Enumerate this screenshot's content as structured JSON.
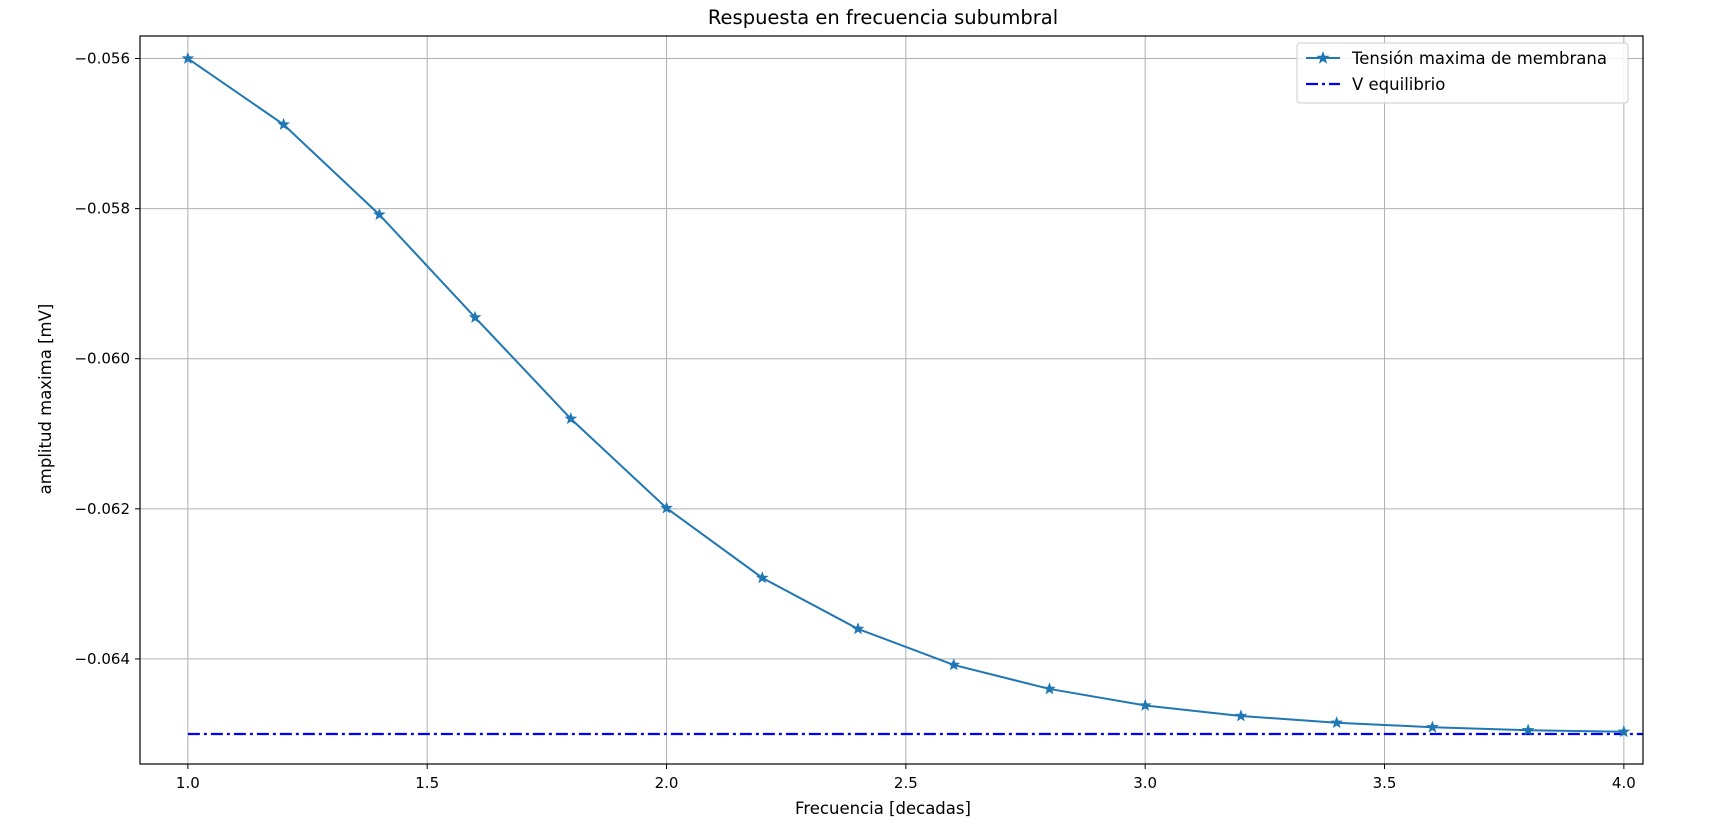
{
  "chart_data": {
    "type": "line",
    "title": "Respuesta en frecuencia subumbral",
    "xlabel": "Frecuencia [decadas]",
    "ylabel": "amplitud maxima [mV]",
    "xlim": [
      0.9,
      4.04
    ],
    "ylim": [
      -0.0654,
      -0.0557
    ],
    "xticks": [
      1.0,
      1.5,
      2.0,
      2.5,
      3.0,
      3.5,
      4.0
    ],
    "xtick_labels": [
      "1.0",
      "1.5",
      "2.0",
      "2.5",
      "3.0",
      "3.5",
      "4.0"
    ],
    "yticks": [
      -0.056,
      -0.058,
      -0.06,
      -0.062,
      -0.064
    ],
    "ytick_labels": [
      "−0.056",
      "−0.058",
      "−0.060",
      "−0.062",
      "−0.064"
    ],
    "grid": true,
    "legend_position": "top-right",
    "series": [
      {
        "name": "Tensión maxima de membrana",
        "color": "#1f77b4",
        "marker": "star",
        "linestyle": "solid",
        "x": [
          1.0,
          1.2,
          1.4,
          1.6,
          1.8,
          2.0,
          2.2,
          2.4,
          2.6,
          2.8,
          3.0,
          3.2,
          3.4,
          3.6,
          3.8,
          4.0
        ],
        "y": [
          -0.056,
          -0.05688,
          -0.05808,
          -0.05945,
          -0.0608,
          -0.06199,
          -0.06292,
          -0.0636,
          -0.06408,
          -0.0644,
          -0.06462,
          -0.06476,
          -0.06485,
          -0.06491,
          -0.06495,
          -0.06497
        ]
      },
      {
        "name": "V equilibrio",
        "color": "#0000ff",
        "marker": "none",
        "linestyle": "dashdot",
        "x": [
          1.0,
          4.04
        ],
        "y": [
          -0.065,
          -0.065
        ]
      }
    ]
  }
}
